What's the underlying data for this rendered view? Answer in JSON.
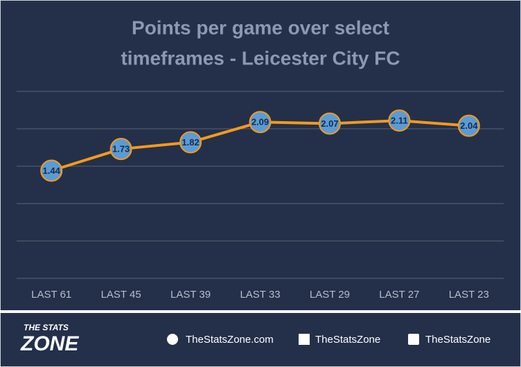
{
  "chart_data": {
    "type": "line",
    "title": [
      "Points per game over select",
      "timeframes - Leicester City FC"
    ],
    "categories": [
      "LAST 61",
      "LAST 45",
      "LAST 39",
      "LAST 33",
      "LAST 29",
      "LAST 27",
      "LAST 23"
    ],
    "values": [
      1.44,
      1.73,
      1.82,
      2.09,
      2.07,
      2.11,
      2.04
    ],
    "color": "#f59a1b",
    "marker_color": "#5b9bd5",
    "ylim": [
      0,
      2.5
    ],
    "yticks": [
      0,
      0.5,
      1,
      1.5,
      2,
      2.5
    ],
    "grid": true
  },
  "footer": {
    "logo": [
      "THE STATS",
      "ZONE"
    ],
    "website": "TheStatsZone.com",
    "facebook": "TheStatsZone",
    "twitter": "TheStatsZone"
  }
}
